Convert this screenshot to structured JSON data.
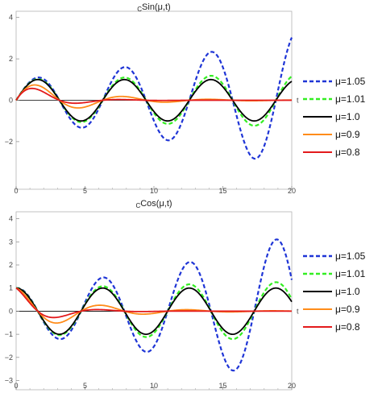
{
  "colors": {
    "mu105": "#1f35d6",
    "mu101": "#33ee22",
    "mu100": "#000000",
    "mu09": "#ff8c1a",
    "mu08": "#e31a1c",
    "frame": "#b4b4b4",
    "zero_line": "#000000"
  },
  "chart_data": [
    {
      "type": "line",
      "title_sub": "C",
      "title_main": "Sin(μ,t)",
      "xlabel": "t",
      "ylabel": "",
      "xlim": [
        0,
        20
      ],
      "ylim": [
        -4.3,
        4.3
      ],
      "x_ticks": [
        0,
        5,
        10,
        15,
        20
      ],
      "y_ticks": [
        4,
        2,
        0,
        -2
      ],
      "grid": false,
      "legend_position": "right",
      "function": "sin",
      "series": [
        {
          "name": "μ=1.05",
          "mu": 1.05,
          "color": "#1f35d6",
          "dash": "dashed"
        },
        {
          "name": "μ=1.01",
          "mu": 1.01,
          "color": "#33ee22",
          "dash": "dashed"
        },
        {
          "name": "μ=1.0",
          "mu": 1.0,
          "color": "#000000",
          "dash": "solid"
        },
        {
          "name": "μ=0.9",
          "mu": 0.9,
          "color": "#ff8c1a",
          "dash": "solid"
        },
        {
          "name": "μ=0.8",
          "mu": 0.8,
          "color": "#e31a1c",
          "dash": "solid"
        }
      ]
    },
    {
      "type": "line",
      "title_sub": "C",
      "title_main": "Cos(μ,t)",
      "xlabel": "t",
      "ylabel": "",
      "xlim": [
        0,
        20
      ],
      "ylim": [
        -3.4,
        4.3
      ],
      "x_ticks": [
        0,
        5,
        10,
        15,
        20
      ],
      "y_ticks": [
        4,
        3,
        2,
        1,
        0,
        -1,
        -2,
        -3
      ],
      "grid": false,
      "legend_position": "right",
      "function": "cos",
      "series": [
        {
          "name": "μ=1.05",
          "mu": 1.05,
          "color": "#1f35d6",
          "dash": "dashed"
        },
        {
          "name": "μ=1.01",
          "mu": 1.01,
          "color": "#33ee22",
          "dash": "dashed"
        },
        {
          "name": "μ=1.0",
          "mu": 1.0,
          "color": "#000000",
          "dash": "solid"
        },
        {
          "name": "μ=0.9",
          "mu": 0.9,
          "color": "#ff8c1a",
          "dash": "solid"
        },
        {
          "name": "μ=0.8",
          "mu": 0.8,
          "color": "#e31a1c",
          "dash": "solid"
        }
      ]
    }
  ]
}
